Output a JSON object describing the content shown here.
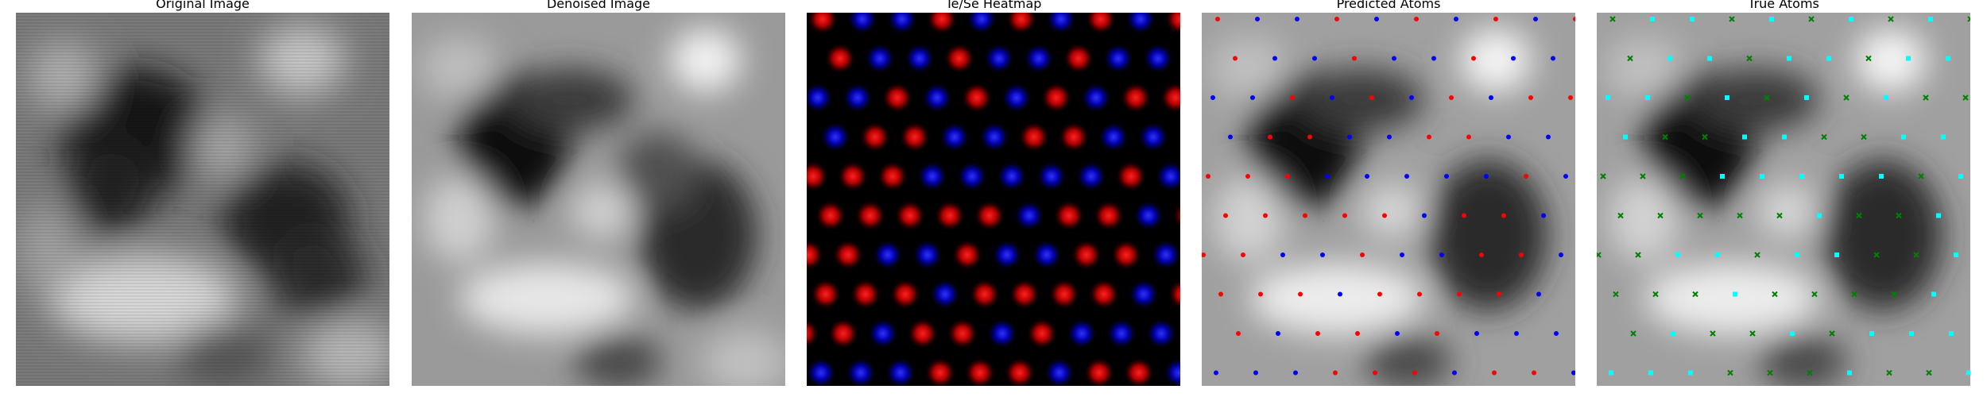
{
  "panels": [
    {
      "title": "Original Image"
    },
    {
      "title": "Denoised Image"
    },
    {
      "title": "Te/Se Heatmap"
    },
    {
      "title": "Predicted Atoms"
    },
    {
      "title": "True Atoms"
    }
  ],
  "colors": {
    "te_heat": "#ff0000",
    "se_heat": "#0000ff",
    "pred_te": "#ff0000",
    "pred_se": "#0000ff",
    "true_te": "#008000",
    "true_se": "#00ffff"
  }
}
